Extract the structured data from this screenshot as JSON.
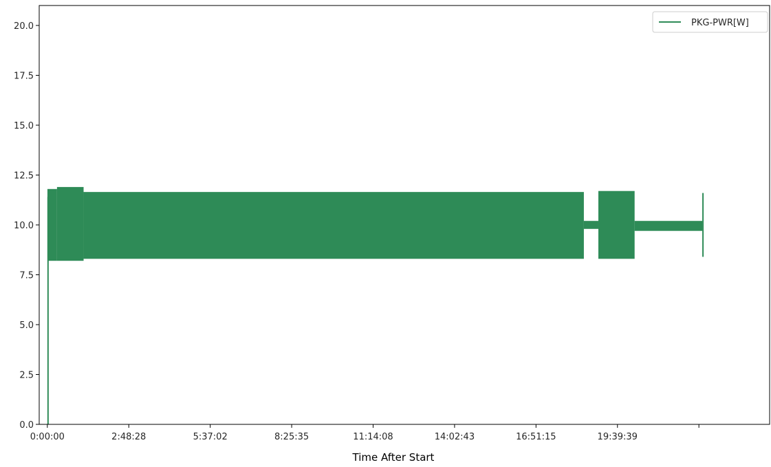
{
  "chart_data": {
    "type": "line",
    "title": "",
    "xlabel": "Time After Start",
    "ylabel": "",
    "x_tick_labels": [
      "0:00:00",
      "2:48:28",
      "5:37:02",
      "8:25:35",
      "11:14:08",
      "14:02:43",
      "16:51:15",
      "19:39:39",
      ""
    ],
    "y_ticks": [
      0.0,
      2.5,
      5.0,
      7.5,
      10.0,
      12.5,
      15.0,
      17.5,
      20.0
    ],
    "y_tick_labels": [
      "0.0",
      "2.5",
      "5.0",
      "7.5",
      "10.0",
      "12.5",
      "15.0",
      "17.5",
      "20.0"
    ],
    "ylim": [
      0,
      21
    ],
    "xlim": [
      "-0:16:50",
      "24:54:20"
    ],
    "grid": false,
    "legend_position": "top-right",
    "series": [
      {
        "name": "PKG-PWR[W]",
        "color": "#2e8b57",
        "segments": [
          {
            "x_start": "0:00:00",
            "x_end": "0:00:10",
            "low": 0.0,
            "high": 11.4
          },
          {
            "x_start": "0:00:10",
            "x_end": "0:20:00",
            "low": 8.2,
            "high": 11.8
          },
          {
            "x_start": "0:20:00",
            "x_end": "1:15:00",
            "low": 8.2,
            "high": 11.9
          },
          {
            "x_start": "1:15:00",
            "x_end": "18:30:00",
            "low": 8.3,
            "high": 11.65
          },
          {
            "x_start": "18:30:00",
            "x_end": "19:00:00",
            "low": 9.8,
            "high": 10.2
          },
          {
            "x_start": "19:00:00",
            "x_end": "20:15:00",
            "low": 8.3,
            "high": 11.7
          },
          {
            "x_start": "20:15:00",
            "x_end": "22:35:00",
            "low": 9.7,
            "high": 10.2
          },
          {
            "x_start": "22:35:00",
            "x_end": "22:36:00",
            "low": 8.4,
            "high": 11.6
          }
        ]
      }
    ]
  }
}
